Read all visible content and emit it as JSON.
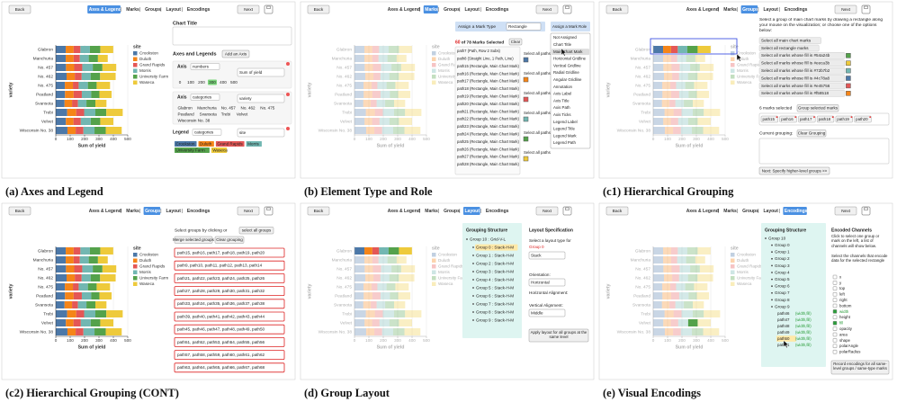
{
  "nav": {
    "back": "Back",
    "next": "Next",
    "steps": [
      "Axes & Legend",
      "Marks",
      "Groups",
      "Layout",
      "Encodings"
    ],
    "separator": "|"
  },
  "chart_data": {
    "type": "bar",
    "orientation": "horizontal",
    "stacked": true,
    "categories": [
      "Glabron",
      "Manchuria",
      "No. 457",
      "No. 462",
      "No. 475",
      "Peatland",
      "Svansota",
      "Trebi",
      "Velvet",
      "Wisconsin No. 38"
    ],
    "series": [
      {
        "name": "Crookston",
        "color": "#4c78a8",
        "values": [
          69,
          69,
          71,
          75,
          63,
          64,
          61,
          79,
          70,
          81
        ]
      },
      {
        "name": "Duluth",
        "color": "#f58518",
        "values": [
          55,
          55,
          57,
          57,
          56,
          60,
          52,
          63,
          53,
          57
        ]
      },
      {
        "name": "Grand Rapids",
        "color": "#e45756",
        "values": [
          47,
          43,
          56,
          48,
          40,
          57,
          41,
          55,
          51,
          54
        ]
      },
      {
        "name": "Morris",
        "color": "#72b7b2",
        "values": [
          66,
          62,
          73,
          62,
          64,
          65,
          59,
          78,
          69,
          77
        ]
      },
      {
        "name": "University Farm",
        "color": "#54a24b",
        "values": [
          72,
          64,
          67,
          66,
          61,
          57,
          62,
          76,
          66,
          78
        ]
      },
      {
        "name": "Waseca",
        "color": "#eeca3b",
        "values": [
          90,
          68,
          96,
          108,
          93,
          85,
          77,
          114,
          91,
          111
        ]
      }
    ],
    "xlim": [
      0,
      500
    ],
    "xticks": [
      0,
      100,
      200,
      300,
      400,
      500
    ],
    "xlabel": "Sum of yield",
    "ylabel": "variety",
    "legend_title": "site"
  },
  "panels": [
    {
      "caption": "(a) Axes and Legend",
      "active_step": 0,
      "faded": false,
      "chart_title_label": "Chart Title",
      "axes_title": "Axes and Legends",
      "add_axis": "Add an Axis",
      "axes": [
        {
          "label": "Axis",
          "kind": "numbers",
          "title": "Sum of yield"
        },
        {
          "label": "Axis",
          "kind": "categories",
          "title": "variety"
        }
      ],
      "highlight_tick": 3,
      "legend": {
        "label": "Legend",
        "kind": "categories",
        "title": "site"
      }
    },
    {
      "caption": "(b) Element Type and Role",
      "active_step": 1,
      "faded": true,
      "assign_type": "Assign a Mark Type",
      "type_choice": "Rectangle",
      "assign_role": "Assign a Mark Role",
      "selected_count": 60,
      "selected_text": "of 78 Marks Selected",
      "clear": "Clear",
      "marks": [
        "path7 (Path, Row 2 Subs)",
        "path8 (Straight Line, 1 Path, Line)",
        "path15 (Rectangle, Main Chart Mark)",
        "path16 (Rectangle, Main Chart Mark)",
        "path17 (Rectangle, Main Chart Mark)",
        "path18 (Rectangle, Main Chart Mark)",
        "path19 (Rectangle, Main Chart Mark)",
        "path20 (Rectangle, Main Chart Mark)",
        "path21 (Rectangle, Main Chart Mark)",
        "path22 (Rectangle, Main Chart Mark)",
        "path23 (Rectangle, Main Chart Mark)",
        "path24 (Rectangle, Main Chart Mark)",
        "path25 (Rectangle, Main Chart Mark)",
        "path26 (Rectangle, Main Chart Mark)",
        "path27 (Rectangle, Main Chart Mark)",
        "path28 (Rectangle, Main Chart Mark)"
      ],
      "select_all": "Select all paths",
      "roles": [
        "Not Assigned",
        "Chart Title",
        "Main Chart Mark",
        "Horizontal Gridline",
        "Vertical Gridline",
        "Radial Gridline",
        "Angular Gridline",
        "Annotation",
        "Axis Label",
        "Axis Title",
        "Axis Path",
        "Axis Ticks",
        "Legend Label",
        "Legend Title",
        "Legend Mark",
        "Legend Path"
      ],
      "active_role": 2
    },
    {
      "caption": "(c1) Hierarchical Grouping",
      "active_step": 2,
      "faded": true,
      "focus_row": 0,
      "instructions": "Select a group of main chart marks by drawing a rectangle along your mouse on the visualization; or choose one of the options below:",
      "options": [
        "Select all main chart marks",
        "Select all rectangle marks",
        "Select all marks whose fill is #54a24b",
        "Select all marks whose fill is #eeca3b",
        "Select all marks whose fill is #72b7b2",
        "Select all marks whose fill is #4c78a8",
        "Select all marks whose fill is #e45756",
        "Select all marks whose fill is #f58518"
      ],
      "selected_text": "6 marks selected",
      "group_button": "Group selected marks",
      "selected_paths": [
        "path15",
        "path16",
        "path17",
        "path18",
        "path19",
        "path20"
      ],
      "current_grouping": "Current grouping:",
      "clear_grouping": "Clear Grouping",
      "next_button": "Next: Specify higher-level groups >>"
    },
    {
      "caption": "(c2) Hierarchical Grouping (CONT)",
      "active_step": 2,
      "faded": false,
      "prompt": "Select groups by clicking or",
      "select_all": "select all groups",
      "merge": "Merge selected groups",
      "clear": "Clear grouping",
      "groups": [
        "path15, path16, path17, path18, path19, path20",
        "path9, path10, path11, path12, path13, path14",
        "path21, path22, path23, path24, path25, path26",
        "path27, path28, path29, path30, path31, path32",
        "path33, path34, path35, path36, path37, path38",
        "path39, path40, path41, path42, path43, path44",
        "path45, path46, path47, path48, path49, path50",
        "path51, path52, path53, path54, path55, path56",
        "path57, path58, path59, path60, path61, path62",
        "path63, path64, path65, path66, path67, path68"
      ]
    },
    {
      "caption": "(d) Group Layout",
      "active_step": 3,
      "faded": true,
      "focus_row": 0,
      "structure_title": "Grouping Structure",
      "groups": [
        "Group 10 : Grid-V-L",
        "Group 0 : Stack-H-M",
        "Group 1 : Stack-H-M",
        "Group 2 : Stack-H-M",
        "Group 3 : Stack-H-M",
        "Group 4 : Stack-H-M",
        "Group 5 : Stack-H-M",
        "Group 6 : Stack-H-M",
        "Group 7 : Stack-H-M",
        "Group 8 : Stack-H-M",
        "Group 9 : Stack-H-M"
      ],
      "layout_title": "Layout Specification",
      "layout_prompt": "Select a layout type for",
      "layout_group": "Group 0",
      "layout_type": "Stack",
      "orientation_label": "Orientation:",
      "orientation": "Horizontal",
      "h_align_label": "Horizontal Alignment:",
      "v_align_label": "Vertical Alignment:",
      "v_align": "Middle",
      "apply": "Apply layout for all groups at the same level"
    },
    {
      "caption": "(e) Visual Encodings",
      "active_step": 4,
      "faded": true,
      "focus_row": 8,
      "focus_series": 4,
      "structure_title": "Grouping Structure",
      "groups": [
        "Group 10",
        "Group 0",
        "Group 1",
        "Group 2",
        "Group 3",
        "Group 4",
        "Group 5",
        "Group 6",
        "Group 7",
        "Group 8",
        "Group 9"
      ],
      "children": [
        {
          "label": "path46",
          "encoding": "(width,fill)"
        },
        {
          "label": "path47",
          "encoding": "(width,fill)"
        },
        {
          "label": "path48",
          "encoding": "(width,fill)"
        },
        {
          "label": "path49",
          "encoding": "(width,fill)"
        },
        {
          "label": "path50",
          "encoding": "(width,fill)"
        },
        {
          "label": "path51",
          "encoding": "(width,fill)"
        }
      ],
      "encoded_title": "Encoded Channels",
      "instructions": "Click to select one group or mark on the left, a list of channels will show below.",
      "channel_prompt": "Select the channels that encode data for the selected rectangle",
      "channels": [
        "x",
        "y",
        "top",
        "left",
        "right",
        "bottom",
        "width",
        "height",
        "fill",
        "opacity",
        "area",
        "shape",
        "polarAngle",
        "polarRadius"
      ],
      "checked": [
        6,
        8
      ],
      "record": "Record encodings for all same-level groups / same-type marks"
    }
  ]
}
